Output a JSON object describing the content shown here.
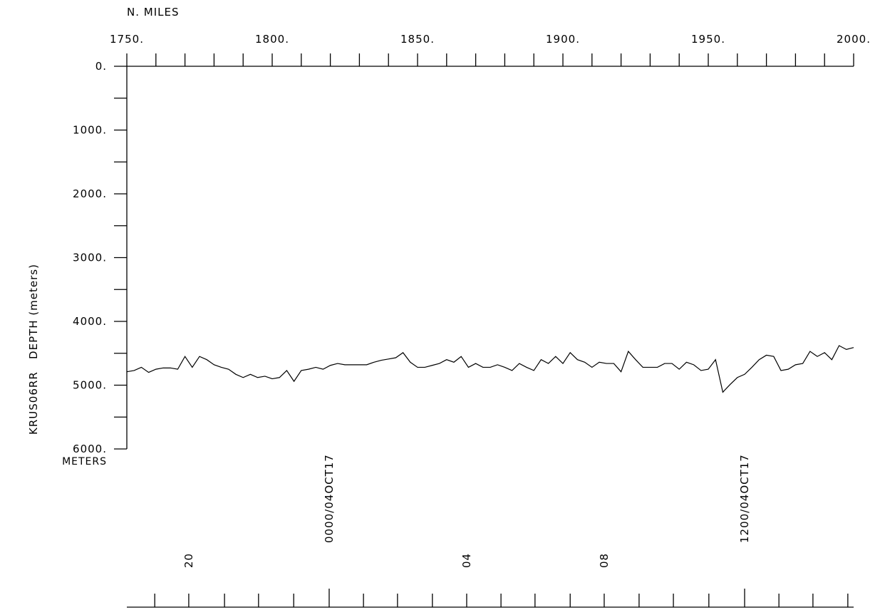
{
  "chart_data": {
    "type": "line",
    "xlabel": "N. MILES",
    "ylabel": "KRUS06RR   DEPTH (meters)",
    "yunit": "METERS",
    "xlim": [
      1750,
      2000
    ],
    "xticks": [
      {
        "value": 1750,
        "label": "1750."
      },
      {
        "value": 1800,
        "label": "1800."
      },
      {
        "value": 1850,
        "label": "1850."
      },
      {
        "value": 1900,
        "label": "1900."
      },
      {
        "value": 1950,
        "label": "1950."
      },
      {
        "value": 2000,
        "label": "2000."
      }
    ],
    "xminorticks": [
      1760,
      1770,
      1780,
      1790,
      1810,
      1820,
      1830,
      1840,
      1860,
      1870,
      1880,
      1890,
      1910,
      1920,
      1930,
      1940,
      1960,
      1970,
      1980,
      1990
    ],
    "ylim": [
      0,
      6000
    ],
    "y_inverted": true,
    "yticks": [
      {
        "value": 0,
        "label": "0."
      },
      {
        "value": 1000,
        "label": "1000."
      },
      {
        "value": 2000,
        "label": "2000."
      },
      {
        "value": 3000,
        "label": "3000."
      },
      {
        "value": 4000,
        "label": "4000."
      },
      {
        "value": 5000,
        "label": "5000."
      },
      {
        "value": 6000,
        "label": "6000."
      }
    ],
    "yminorticks": [
      500,
      1500,
      2500,
      3500,
      4500,
      5500
    ],
    "time_ticks": [
      {
        "value": 1771.3,
        "label": "20"
      },
      {
        "value": 1819.6,
        "label": "0000/04OCT17"
      },
      {
        "value": 1866.9,
        "label": "04"
      },
      {
        "value": 1914.2,
        "label": "08"
      },
      {
        "value": 1962.5,
        "label": "1200/04OCT17"
      }
    ],
    "time_minor_ticks": [
      1759.6,
      1783.6,
      1795.3,
      1807.4,
      1831.4,
      1843.1,
      1855.1,
      1878.7,
      1890.4,
      1902.5,
      1926.2,
      1938.0,
      1950.2,
      1974.3,
      1986.0,
      1998.0
    ],
    "color": "#000000",
    "x": [
      1750,
      1752.5,
      1755,
      1757.5,
      1760,
      1762.5,
      1765,
      1767.5,
      1770,
      1772.5,
      1775,
      1777.5,
      1780,
      1782.5,
      1785,
      1787.5,
      1790,
      1792.5,
      1795,
      1797.5,
      1800,
      1802.5,
      1805,
      1807.5,
      1810,
      1812.5,
      1815,
      1817.5,
      1820,
      1822.5,
      1825,
      1827.5,
      1830,
      1832.5,
      1835,
      1837.5,
      1840,
      1842.5,
      1845,
      1847.5,
      1850,
      1852.5,
      1855,
      1857.5,
      1860,
      1862.5,
      1865,
      1867.5,
      1870,
      1872.5,
      1875,
      1877.5,
      1880,
      1882.5,
      1885,
      1887.5,
      1890,
      1892.5,
      1895,
      1897.5,
      1900,
      1902.5,
      1905,
      1907.5,
      1910,
      1912.5,
      1915,
      1917.5,
      1920,
      1922.5,
      1925,
      1927.5,
      1930,
      1932.5,
      1935,
      1937.5,
      1940,
      1942.5,
      1945,
      1947.5,
      1950,
      1952.5,
      1955,
      1957.5,
      1960,
      1962.5,
      1965,
      1967.5,
      1970,
      1972.5,
      1975,
      1977.5,
      1980,
      1982.5,
      1985,
      1987.5,
      1990,
      1992.5,
      1995,
      1997.5,
      2000
    ],
    "values": [
      4790,
      4770,
      4720,
      4800,
      4750,
      4730,
      4730,
      4750,
      4550,
      4720,
      4550,
      4600,
      4680,
      4720,
      4750,
      4830,
      4880,
      4830,
      4880,
      4860,
      4900,
      4880,
      4770,
      4940,
      4770,
      4750,
      4720,
      4750,
      4690,
      4660,
      4680,
      4680,
      4680,
      4680,
      4640,
      4610,
      4590,
      4570,
      4490,
      4640,
      4720,
      4720,
      4690,
      4660,
      4600,
      4640,
      4550,
      4720,
      4660,
      4720,
      4720,
      4680,
      4720,
      4770,
      4660,
      4720,
      4770,
      4600,
      4660,
      4550,
      4660,
      4490,
      4600,
      4640,
      4720,
      4640,
      4660,
      4660,
      4790,
      4470,
      4600,
      4720,
      4720,
      4720,
      4660,
      4660,
      4750,
      4640,
      4680,
      4770,
      4750,
      4600,
      5110,
      4990,
      4880,
      4830,
      4720,
      4600,
      4530,
      4550,
      4770,
      4750,
      4680,
      4660,
      4470,
      4550,
      4490,
      4600,
      4380,
      4440,
      4410
    ]
  }
}
